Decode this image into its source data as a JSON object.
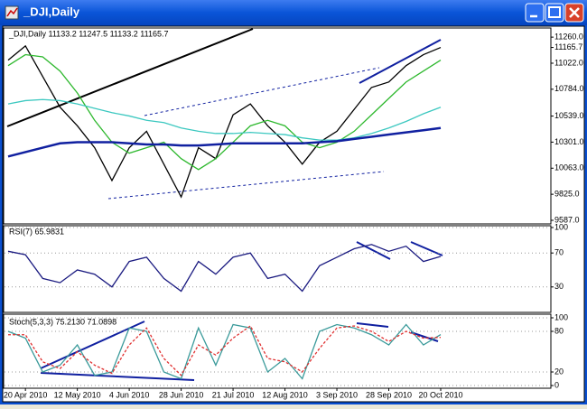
{
  "window": {
    "title": "_DJI,Daily"
  },
  "chart_data": [
    {
      "type": "line",
      "title": "_DJI,Daily  11133.2 11247.5 11133.2 11165.7",
      "ylim": [
        9554,
        11327
      ],
      "yticks": [
        {
          "value": 9587,
          "label": "9587.0"
        },
        {
          "value": 9825,
          "label": "9825.0"
        },
        {
          "value": 10063,
          "label": "10063.0"
        },
        {
          "value": 10301,
          "label": "10301.0"
        },
        {
          "value": 10539,
          "label": "10539.0"
        },
        {
          "value": 10784,
          "label": "10784.0"
        },
        {
          "value": 11022,
          "label": "11022.0"
        },
        11165.7,
        {
          "value": 11260,
          "label": "11260.0"
        }
      ],
      "grid": false,
      "series": [
        {
          "color": "#000000",
          "values": [
            11050,
            11180,
            10900,
            10620,
            10450,
            10250,
            9950,
            10250,
            10400,
            10100,
            9800,
            10250,
            10150,
            10550,
            10650,
            10450,
            10300,
            10100,
            10300,
            10400,
            10600,
            10800,
            10850,
            11000,
            11100,
            11165.7
          ]
        },
        {
          "color": "#2db82d",
          "values": [
            11000,
            11100,
            11080,
            10950,
            10750,
            10500,
            10300,
            10200,
            10250,
            10300,
            10150,
            10050,
            10150,
            10300,
            10450,
            10500,
            10450,
            10300,
            10250,
            10300,
            10400,
            10550,
            10700,
            10850,
            10950,
            11050
          ]
        },
        {
          "color": "#3cc8c0",
          "values": [
            10650,
            10680,
            10690,
            10680,
            10650,
            10610,
            10570,
            10540,
            10500,
            10480,
            10430,
            10400,
            10380,
            10380,
            10390,
            10380,
            10370,
            10340,
            10320,
            10320,
            10340,
            10380,
            10430,
            10490,
            10560,
            10620
          ]
        },
        {
          "color": "#1020a0",
          "values": [
            10170,
            10210,
            10250,
            10290,
            10300,
            10300,
            10300,
            10290,
            10280,
            10280,
            10270,
            10270,
            10280,
            10290,
            10290,
            10290,
            10290,
            10290,
            10300,
            10310,
            10330,
            10350,
            10370,
            10390,
            10410,
            10430
          ]
        }
      ]
    },
    {
      "type": "line",
      "title": "RSI(7) 65.9831",
      "ylim": [
        0,
        100
      ],
      "yticks": [
        30,
        70,
        100
      ],
      "grid": true,
      "series": [
        {
          "color": "#1a1a80",
          "values": [
            72,
            68,
            40,
            35,
            50,
            45,
            30,
            60,
            65,
            40,
            25,
            60,
            45,
            65,
            70,
            40,
            45,
            25,
            55,
            65,
            75,
            80,
            72,
            78,
            60,
            65.9831
          ]
        }
      ]
    },
    {
      "type": "line",
      "title": "Stoch(5,3,3) 75.2130 71.0898",
      "ylim": [
        0,
        100
      ],
      "yticks": [
        0,
        20,
        80,
        100
      ],
      "grid": true,
      "categories": [
        null,
        "20 Apr 2010",
        null,
        null,
        "12 May 2010",
        null,
        null,
        "4 Jun 2010",
        null,
        null,
        "28 Jun 2010",
        null,
        null,
        "21 Jul 2010",
        null,
        null,
        "12 Aug 2010",
        null,
        null,
        "3 Sep 2010",
        null,
        null,
        "28 Sep 2010",
        null,
        null,
        "20 Oct 2010"
      ],
      "series": [
        {
          "color": "#3a9a9a",
          "dashed": false,
          "values": [
            80,
            70,
            20,
            30,
            60,
            15,
            20,
            85,
            80,
            20,
            10,
            85,
            30,
            90,
            85,
            20,
            40,
            10,
            80,
            90,
            85,
            75,
            60,
            90,
            60,
            75.213
          ]
        },
        {
          "color": "#e03030",
          "dashed": true,
          "values": [
            75,
            75,
            35,
            25,
            50,
            30,
            18,
            60,
            85,
            40,
            15,
            60,
            45,
            70,
            88,
            40,
            35,
            20,
            55,
            85,
            88,
            80,
            65,
            80,
            70,
            71.0898
          ]
        }
      ]
    }
  ]
}
